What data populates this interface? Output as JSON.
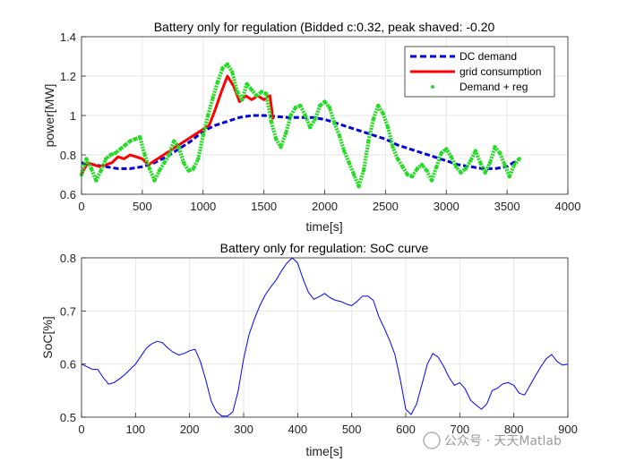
{
  "chart_data": [
    {
      "type": "line",
      "title": "Battery only for regulation (Bidded c:0.32, peak shaved: -0.20",
      "xlabel": "time[s]",
      "ylabel": "power[MW]",
      "xlim": [
        0,
        4000
      ],
      "ylim": [
        0.6,
        1.4
      ],
      "xticks": [
        "0",
        "500",
        "1000",
        "1500",
        "2000",
        "2500",
        "3000",
        "3500",
        "4000"
      ],
      "yticks": [
        "0.6",
        "0.8",
        "1",
        "1.2",
        "1.4"
      ],
      "grid": true,
      "legend_position": "top-right",
      "series": [
        {
          "name": "DC demand",
          "color": "#0000dd",
          "style": "dashed",
          "x": [
            0,
            100,
            200,
            300,
            400,
            500,
            600,
            700,
            800,
            900,
            1000,
            1100,
            1200,
            1300,
            1400,
            1500,
            1600,
            1700,
            1800,
            1900,
            2000,
            2100,
            2200,
            2300,
            2400,
            2500,
            2600,
            2700,
            2800,
            2900,
            3000,
            3100,
            3200,
            3300,
            3400,
            3500,
            3600
          ],
          "y": [
            0.76,
            0.75,
            0.74,
            0.73,
            0.73,
            0.74,
            0.76,
            0.79,
            0.83,
            0.87,
            0.92,
            0.95,
            0.97,
            0.99,
            1.0,
            1.0,
            0.995,
            0.99,
            0.99,
            0.99,
            0.98,
            0.96,
            0.94,
            0.92,
            0.9,
            0.88,
            0.85,
            0.83,
            0.81,
            0.79,
            0.77,
            0.75,
            0.74,
            0.73,
            0.73,
            0.74,
            0.78
          ]
        },
        {
          "name": "grid consumption",
          "color": "#ff0000",
          "style": "solid",
          "x": [
            0,
            50,
            100,
            150,
            200,
            250,
            300,
            350,
            400,
            450,
            500,
            550,
            1050,
            1100,
            1150,
            1200,
            1250,
            1300,
            1350,
            1400,
            1450,
            1500,
            1550,
            1575
          ],
          "y": [
            0.7,
            0.76,
            0.75,
            0.74,
            0.75,
            0.76,
            0.79,
            0.78,
            0.8,
            0.79,
            0.78,
            0.75,
            0.95,
            1.03,
            1.12,
            1.2,
            1.15,
            1.07,
            1.1,
            1.08,
            1.1,
            1.08,
            1.1,
            0.98
          ]
        },
        {
          "name": "Demand + reg",
          "color": "#22dd22",
          "style": "dots",
          "x": [
            0,
            40,
            80,
            120,
            160,
            200,
            240,
            280,
            320,
            360,
            400,
            440,
            480,
            520,
            560,
            600,
            640,
            680,
            720,
            760,
            800,
            840,
            880,
            920,
            960,
            1000,
            1040,
            1080,
            1120,
            1160,
            1200,
            1240,
            1280,
            1320,
            1360,
            1400,
            1440,
            1480,
            1520,
            1560,
            1600,
            1640,
            1680,
            1720,
            1760,
            1800,
            1840,
            1880,
            1920,
            1960,
            2000,
            2040,
            2080,
            2120,
            2160,
            2200,
            2240,
            2280,
            2320,
            2360,
            2400,
            2440,
            2480,
            2520,
            2560,
            2600,
            2640,
            2680,
            2720,
            2760,
            2800,
            2840,
            2880,
            2920,
            2960,
            3000,
            3040,
            3080,
            3120,
            3160,
            3200,
            3240,
            3280,
            3320,
            3360,
            3400,
            3440,
            3480,
            3520,
            3560,
            3600
          ],
          "y": [
            0.7,
            0.78,
            0.73,
            0.67,
            0.72,
            0.78,
            0.8,
            0.81,
            0.83,
            0.85,
            0.87,
            0.88,
            0.89,
            0.8,
            0.73,
            0.67,
            0.72,
            0.76,
            0.8,
            0.87,
            0.84,
            0.76,
            0.72,
            0.73,
            0.78,
            0.9,
            1.0,
            1.09,
            1.17,
            1.24,
            1.26,
            1.22,
            1.12,
            1.08,
            1.16,
            1.13,
            1.1,
            1.12,
            1.11,
            0.97,
            0.88,
            0.84,
            0.91,
            1.0,
            1.04,
            1.05,
            1.0,
            0.94,
            0.98,
            1.05,
            1.07,
            1.04,
            0.96,
            0.9,
            0.82,
            0.76,
            0.7,
            0.64,
            0.72,
            0.87,
            0.98,
            1.05,
            1.01,
            0.94,
            0.84,
            0.78,
            0.74,
            0.7,
            0.69,
            0.73,
            0.75,
            0.72,
            0.67,
            0.74,
            0.81,
            0.83,
            0.79,
            0.74,
            0.71,
            0.73,
            0.77,
            0.82,
            0.76,
            0.71,
            0.76,
            0.84,
            0.81,
            0.75,
            0.69,
            0.75,
            0.78
          ]
        }
      ]
    },
    {
      "type": "line",
      "title": "Battery only for regulation: SoC curve",
      "xlabel": "time[s]",
      "ylabel": "SoC[%]",
      "xlim": [
        0,
        900
      ],
      "ylim": [
        0.5,
        0.8
      ],
      "xticks": [
        "0",
        "100",
        "200",
        "300",
        "400",
        "500",
        "600",
        "700",
        "800",
        "900"
      ],
      "yticks": [
        "0.5",
        "0.6",
        "0.7",
        "0.8"
      ],
      "grid": true,
      "series": [
        {
          "name": "SoC",
          "color": "#0000ff",
          "style": "solid",
          "x": [
            0,
            10,
            20,
            30,
            40,
            50,
            60,
            70,
            80,
            90,
            100,
            110,
            120,
            130,
            140,
            150,
            160,
            170,
            180,
            190,
            200,
            210,
            220,
            230,
            240,
            250,
            260,
            270,
            280,
            290,
            300,
            310,
            320,
            330,
            340,
            350,
            360,
            370,
            380,
            390,
            400,
            410,
            420,
            430,
            440,
            450,
            460,
            470,
            480,
            490,
            500,
            510,
            520,
            530,
            540,
            550,
            560,
            570,
            580,
            590,
            600,
            610,
            620,
            630,
            640,
            650,
            660,
            670,
            680,
            690,
            700,
            710,
            720,
            730,
            740,
            750,
            760,
            770,
            780,
            790,
            800,
            810,
            820,
            830,
            840,
            850,
            860,
            870,
            880,
            890,
            900
          ],
          "y": [
            0.6,
            0.595,
            0.59,
            0.59,
            0.575,
            0.562,
            0.565,
            0.572,
            0.58,
            0.59,
            0.6,
            0.615,
            0.63,
            0.638,
            0.643,
            0.64,
            0.63,
            0.622,
            0.617,
            0.62,
            0.625,
            0.628,
            0.605,
            0.57,
            0.53,
            0.51,
            0.502,
            0.502,
            0.51,
            0.55,
            0.61,
            0.655,
            0.685,
            0.71,
            0.73,
            0.745,
            0.758,
            0.775,
            0.79,
            0.8,
            0.79,
            0.76,
            0.735,
            0.722,
            0.727,
            0.733,
            0.725,
            0.72,
            0.718,
            0.713,
            0.71,
            0.718,
            0.728,
            0.728,
            0.72,
            0.69,
            0.668,
            0.645,
            0.618,
            0.57,
            0.515,
            0.505,
            0.525,
            0.562,
            0.6,
            0.62,
            0.613,
            0.596,
            0.575,
            0.56,
            0.565,
            0.553,
            0.532,
            0.523,
            0.515,
            0.525,
            0.55,
            0.555,
            0.563,
            0.565,
            0.56,
            0.545,
            0.542,
            0.56,
            0.578,
            0.595,
            0.61,
            0.618,
            0.605,
            0.598,
            0.6
          ]
        }
      ]
    }
  ],
  "watermark": {
    "text": "公众号 · 天天Matlab"
  }
}
